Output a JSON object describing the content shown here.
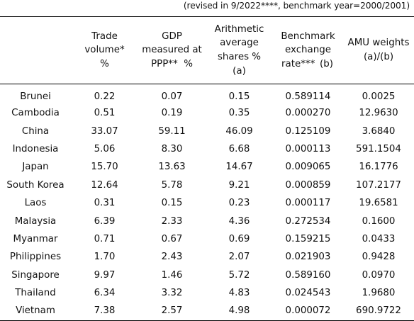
{
  "note": "(revised in 9/2022****, benchmark year=2000/2001)",
  "headers": {
    "country": "",
    "trade": [
      "Trade",
      "volume*",
      "%"
    ],
    "gdp": [
      "GDP",
      "measured at",
      "PPP**  %"
    ],
    "shares": [
      "Arithmetic",
      "average",
      "shares %",
      "(a)"
    ],
    "rate": [
      "Benchmark",
      "exchange"
    ],
    "rate_last_left": "rate***",
    "rate_last_right": "(b)",
    "weights": [
      "AMU weights",
      "(a)/(b)"
    ]
  },
  "rows": [
    {
      "country": "Brunei",
      "trade": "0.22",
      "gdp": "0.07",
      "shares": "0.15",
      "rate": "0.589114",
      "weight": "0.0025"
    },
    {
      "country": "Cambodia",
      "trade": "0.51",
      "gdp": "0.19",
      "shares": "0.35",
      "rate": "0.000270",
      "weight": "12.9630"
    },
    {
      "country": "China",
      "trade": "33.07",
      "gdp": "59.11",
      "shares": "46.09",
      "rate": "0.125109",
      "weight": "3.6840"
    },
    {
      "country": "Indonesia",
      "trade": "5.06",
      "gdp": "8.30",
      "shares": "6.68",
      "rate": "0.000113",
      "weight": "591.1504"
    },
    {
      "country": "Japan",
      "trade": "15.70",
      "gdp": "13.63",
      "shares": "14.67",
      "rate": "0.009065",
      "weight": "16.1776"
    },
    {
      "country": "South Korea",
      "trade": "12.64",
      "gdp": "5.78",
      "shares": "9.21",
      "rate": "0.000859",
      "weight": "107.2177"
    },
    {
      "country": "Laos",
      "trade": "0.31",
      "gdp": "0.15",
      "shares": "0.23",
      "rate": "0.000117",
      "weight": "19.6581"
    },
    {
      "country": "Malaysia",
      "trade": "6.39",
      "gdp": "2.33",
      "shares": "4.36",
      "rate": "0.272534",
      "weight": "0.1600"
    },
    {
      "country": "Myanmar",
      "trade": "0.71",
      "gdp": "0.67",
      "shares": "0.69",
      "rate": "0.159215",
      "weight": "0.0433"
    },
    {
      "country": "Philippines",
      "trade": "1.70",
      "gdp": "2.43",
      "shares": "2.07",
      "rate": "0.021903",
      "weight": "0.9428"
    },
    {
      "country": "Singapore",
      "trade": "9.97",
      "gdp": "1.46",
      "shares": "5.72",
      "rate": "0.589160",
      "weight": "0.0970"
    },
    {
      "country": "Thailand",
      "trade": "6.34",
      "gdp": "3.32",
      "shares": "4.83",
      "rate": "0.024543",
      "weight": "1.9680"
    },
    {
      "country": "Vietnam",
      "trade": "7.38",
      "gdp": "2.57",
      "shares": "4.98",
      "rate": "0.000072",
      "weight": "690.9722"
    }
  ]
}
